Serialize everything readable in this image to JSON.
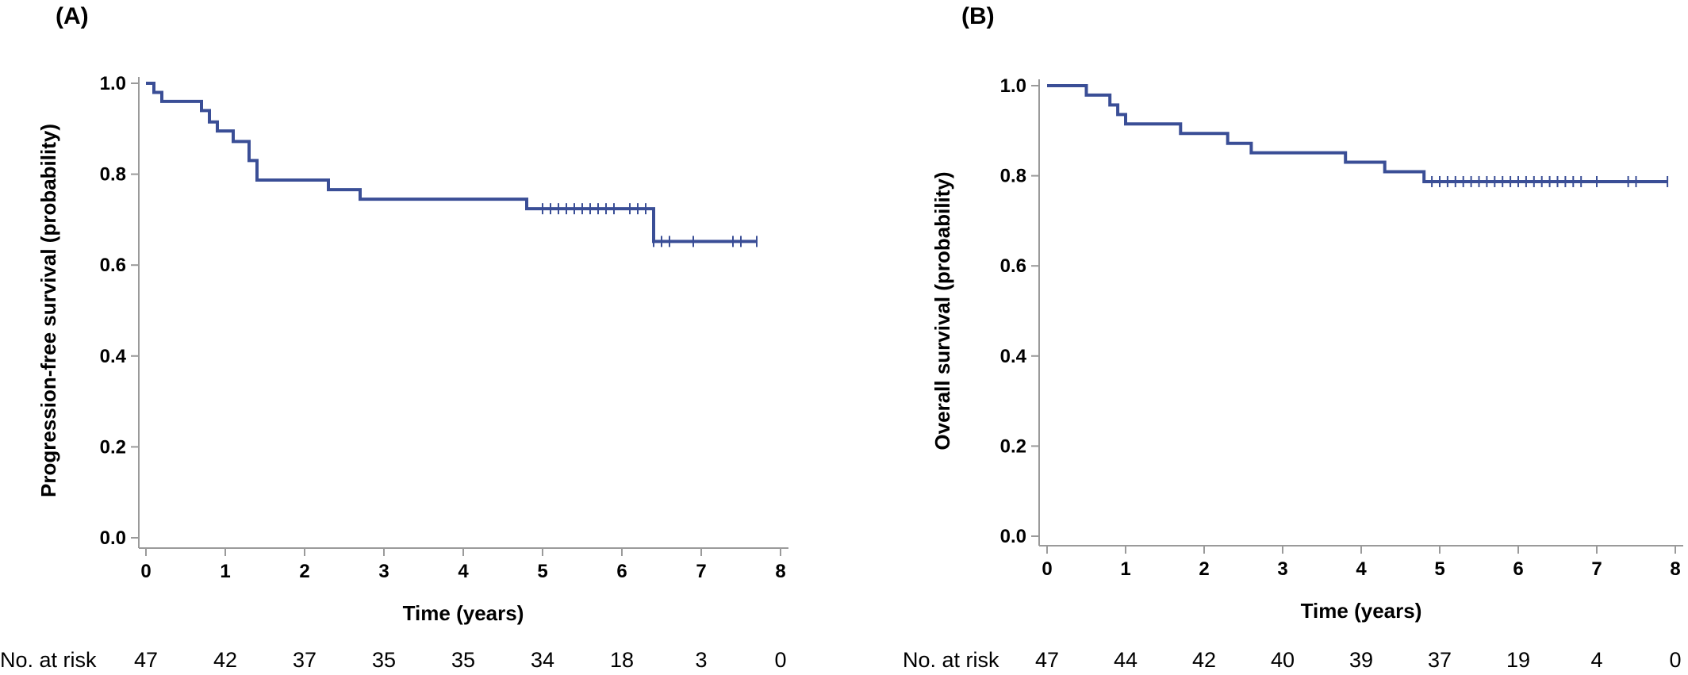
{
  "chart_data": [
    {
      "panel_label": "(A)",
      "type": "line",
      "subtype": "kaplan-meier step",
      "xlabel": "Time (years)",
      "ylabel": "Progression-free survival (probability)",
      "xlim": [
        0,
        8
      ],
      "ylim": [
        0,
        1
      ],
      "x_ticks": [
        "0",
        "1",
        "2",
        "3",
        "4",
        "5",
        "6",
        "7",
        "8"
      ],
      "y_ticks": [
        "0.0",
        "0.2",
        "0.4",
        "0.6",
        "0.8",
        "1.0"
      ],
      "series": [
        {
          "color": "#3a4e96",
          "steps": [
            {
              "x": 0.0,
              "y": 1.0
            },
            {
              "x": 0.1,
              "y": 0.98
            },
            {
              "x": 0.2,
              "y": 0.96
            },
            {
              "x": 0.7,
              "y": 0.94
            },
            {
              "x": 0.8,
              "y": 0.915
            },
            {
              "x": 0.9,
              "y": 0.895
            },
            {
              "x": 1.1,
              "y": 0.872
            },
            {
              "x": 1.3,
              "y": 0.83
            },
            {
              "x": 1.4,
              "y": 0.787
            },
            {
              "x": 2.3,
              "y": 0.766
            },
            {
              "x": 2.7,
              "y": 0.745
            },
            {
              "x": 4.8,
              "y": 0.724
            },
            {
              "x": 6.4,
              "y": 0.652
            }
          ],
          "end_x": 7.7,
          "censored_x": [
            5.0,
            5.1,
            5.2,
            5.3,
            5.4,
            5.5,
            5.6,
            5.7,
            5.8,
            5.9,
            6.1,
            6.2,
            6.3,
            6.4,
            6.5,
            6.6,
            6.9,
            7.4,
            7.5,
            7.7
          ]
        }
      ],
      "risk_table": {
        "label": "No. at risk",
        "values": [
          "47",
          "42",
          "37",
          "35",
          "35",
          "34",
          "18",
          "3",
          "0"
        ]
      }
    },
    {
      "panel_label": "(B)",
      "type": "line",
      "subtype": "kaplan-meier step",
      "xlabel": "Time (years)",
      "ylabel": "Overall survival (probability)",
      "xlim": [
        0,
        8
      ],
      "ylim": [
        0,
        1
      ],
      "x_ticks": [
        "0",
        "1",
        "2",
        "3",
        "4",
        "5",
        "6",
        "7",
        "8"
      ],
      "y_ticks": [
        "0.0",
        "0.2",
        "0.4",
        "0.6",
        "0.8",
        "1.0"
      ],
      "series": [
        {
          "color": "#3a4e96",
          "steps": [
            {
              "x": 0.0,
              "y": 1.0
            },
            {
              "x": 0.5,
              "y": 0.979
            },
            {
              "x": 0.8,
              "y": 0.957
            },
            {
              "x": 0.9,
              "y": 0.936
            },
            {
              "x": 1.0,
              "y": 0.915
            },
            {
              "x": 1.7,
              "y": 0.894
            },
            {
              "x": 2.3,
              "y": 0.872
            },
            {
              "x": 2.6,
              "y": 0.851
            },
            {
              "x": 3.8,
              "y": 0.83
            },
            {
              "x": 4.3,
              "y": 0.809
            },
            {
              "x": 4.8,
              "y": 0.787
            }
          ],
          "end_x": 7.9,
          "censored_x": [
            4.9,
            5.0,
            5.1,
            5.2,
            5.3,
            5.4,
            5.5,
            5.6,
            5.7,
            5.8,
            5.9,
            6.0,
            6.1,
            6.2,
            6.3,
            6.4,
            6.5,
            6.6,
            6.7,
            6.8,
            7.0,
            7.4,
            7.5,
            7.9
          ]
        }
      ],
      "risk_table": {
        "label": "No. at risk",
        "values": [
          "47",
          "44",
          "42",
          "40",
          "39",
          "37",
          "19",
          "4",
          "0"
        ]
      }
    }
  ]
}
